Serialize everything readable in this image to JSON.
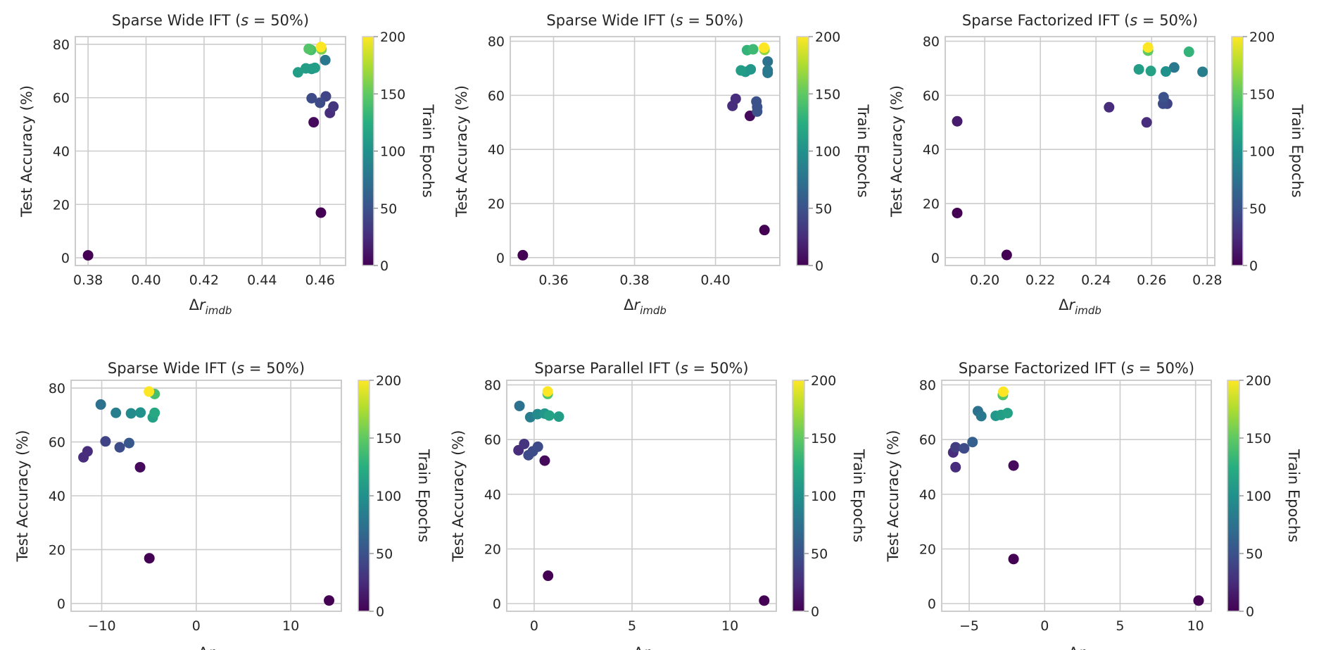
{
  "colormap": {
    "name": "viridis",
    "stops": [
      "#440154",
      "#472d7b",
      "#3b528b",
      "#2c728e",
      "#21918c",
      "#28ae80",
      "#5ec962",
      "#addc30",
      "#fde725"
    ]
  },
  "style": {
    "grid_color": "#cccccc",
    "frame_color": "#cccccc"
  },
  "chart_data": [
    {
      "type": "scatter",
      "title": {
        "prefix": "Sparse Wide IFT (",
        "var": "s",
        "suffix": " = 50%)"
      },
      "xlabel": {
        "main": "Δr",
        "sub": "imdb"
      },
      "ylabel": "Test Accuracy (%)",
      "xlim": [
        0.3756,
        0.4688
      ],
      "ylim": [
        -2.9,
        82.9
      ],
      "xticks": [
        0.38,
        0.4,
        0.42,
        0.44,
        0.46
      ],
      "xtick_labels": [
        "0.38",
        "0.40",
        "0.42",
        "0.44",
        "0.46"
      ],
      "yticks": [
        0,
        20,
        40,
        60,
        80
      ],
      "ytick_labels": [
        "0",
        "20",
        "40",
        "60",
        "80"
      ],
      "grid": true,
      "colorbar": {
        "label": "Train Epochs",
        "range": [
          0,
          200
        ],
        "ticks": [
          0,
          50,
          100,
          150,
          200
        ],
        "tick_labels": [
          "0",
          "50",
          "100",
          "150",
          "200"
        ]
      },
      "points": [
        [
          0.38,
          0.9,
          0
        ],
        [
          0.4603,
          16.9,
          0
        ],
        [
          0.4578,
          50.8,
          5
        ],
        [
          0.4634,
          54.3,
          25
        ],
        [
          0.4646,
          56.7,
          30
        ],
        [
          0.4571,
          59.8,
          45
        ],
        [
          0.46,
          58.1,
          45
        ],
        [
          0.462,
          60.5,
          40
        ],
        [
          0.4618,
          74.1,
          80
        ],
        [
          0.4524,
          69.5,
          110
        ],
        [
          0.4551,
          71.0,
          110
        ],
        [
          0.4571,
          70.8,
          105
        ],
        [
          0.4582,
          71.2,
          110
        ],
        [
          0.4561,
          78.3,
          145
        ],
        [
          0.4569,
          77.9,
          140
        ],
        [
          0.4605,
          78.1,
          160
        ],
        [
          0.4603,
          79.0,
          200
        ]
      ]
    },
    {
      "type": "scatter",
      "title": {
        "prefix": "Sparse Wide IFT (",
        "var": "s",
        "suffix": " = 50%)"
      },
      "xlabel": {
        "main": "Δr",
        "sub": "imdb"
      },
      "ylabel": "Test Accuracy (%)",
      "xlim": [
        0.3493,
        0.4159
      ],
      "ylim": [
        -2.9,
        81.7
      ],
      "xticks": [
        0.36,
        0.38,
        0.4
      ],
      "xtick_labels": [
        "0.36",
        "0.38",
        "0.40"
      ],
      "yticks": [
        0,
        20,
        40,
        60,
        80
      ],
      "ytick_labels": [
        "0",
        "20",
        "40",
        "60",
        "80"
      ],
      "grid": true,
      "colorbar": {
        "label": "Train Epochs",
        "range": [
          0,
          200
        ],
        "ticks": [
          0,
          50,
          100,
          150,
          200
        ],
        "tick_labels": [
          "0",
          "50",
          "100",
          "150",
          "200"
        ]
      },
      "points": [
        [
          0.3524,
          0.9,
          0
        ],
        [
          0.4121,
          10.2,
          0
        ],
        [
          0.4085,
          52.4,
          5
        ],
        [
          0.4042,
          56.1,
          25
        ],
        [
          0.405,
          58.7,
          25
        ],
        [
          0.4101,
          57.7,
          50
        ],
        [
          0.4103,
          55.7,
          50
        ],
        [
          0.4103,
          54.0,
          50
        ],
        [
          0.4129,
          72.5,
          75
        ],
        [
          0.4129,
          69.2,
          80
        ],
        [
          0.4129,
          68.3,
          80
        ],
        [
          0.4063,
          69.2,
          110
        ],
        [
          0.4074,
          68.7,
          105
        ],
        [
          0.4087,
          69.6,
          105
        ],
        [
          0.4078,
          76.7,
          130
        ],
        [
          0.4093,
          77.0,
          135
        ],
        [
          0.4121,
          76.8,
          165
        ],
        [
          0.412,
          77.6,
          200
        ]
      ]
    },
    {
      "type": "scatter",
      "title": {
        "prefix": "Sparse Factorized IFT (",
        "var": "s",
        "suffix": " = 50%)"
      },
      "xlabel": {
        "main": "Δr",
        "sub": "imdb"
      },
      "ylabel": "Test Accuracy (%)",
      "xlim": [
        0.1858,
        0.2827
      ],
      "ylim": [
        -2.9,
        81.7
      ],
      "xticks": [
        0.2,
        0.22,
        0.24,
        0.26,
        0.28
      ],
      "xtick_labels": [
        "0.20",
        "0.22",
        "0.24",
        "0.26",
        "0.28"
      ],
      "yticks": [
        0,
        20,
        40,
        60,
        80
      ],
      "ytick_labels": [
        "0",
        "20",
        "40",
        "60",
        "80"
      ],
      "grid": true,
      "colorbar": {
        "label": "Train Epochs",
        "range": [
          0,
          200
        ],
        "ticks": [
          0,
          50,
          100,
          150,
          200
        ],
        "tick_labels": [
          "0",
          "50",
          "100",
          "150",
          "200"
        ]
      },
      "points": [
        [
          0.1901,
          16.5,
          0
        ],
        [
          0.2079,
          1.0,
          0
        ],
        [
          0.1901,
          50.4,
          15
        ],
        [
          0.2447,
          55.6,
          25
        ],
        [
          0.2582,
          50.0,
          25
        ],
        [
          0.2641,
          56.9,
          45
        ],
        [
          0.2643,
          59.3,
          50
        ],
        [
          0.2656,
          56.9,
          40
        ],
        [
          0.2554,
          69.6,
          110
        ],
        [
          0.2597,
          69.0,
          115
        ],
        [
          0.2651,
          68.8,
          100
        ],
        [
          0.2681,
          70.3,
          80
        ],
        [
          0.2783,
          68.7,
          85
        ],
        [
          0.2734,
          76.1,
          130
        ],
        [
          0.2587,
          76.5,
          150
        ],
        [
          0.2587,
          77.7,
          200
        ]
      ]
    },
    {
      "type": "scatter",
      "title": {
        "prefix": "Sparse Wide IFT (",
        "var": "s",
        "suffix": " = 50%)"
      },
      "xlabel": {
        "main": "Δr",
        "sub": ""
      },
      "ylabel": "Test Accuracy (%)",
      "xlim": [
        -13.24,
        15.35
      ],
      "ylim": [
        -2.9,
        82.9
      ],
      "xticks": [
        -10,
        0,
        10
      ],
      "xtick_labels": [
        "−10",
        "0",
        "10"
      ],
      "yticks": [
        0,
        20,
        40,
        60,
        80
      ],
      "ytick_labels": [
        "0",
        "20",
        "40",
        "60",
        "80"
      ],
      "grid": true,
      "colorbar": {
        "label": "Train Epochs",
        "range": [
          0,
          200
        ],
        "ticks": [
          0,
          50,
          100,
          150,
          200
        ],
        "tick_labels": [
          "0",
          "50",
          "100",
          "150",
          "200"
        ]
      },
      "points": [
        [
          14.05,
          1.1,
          0
        ],
        [
          -4.96,
          16.8,
          0
        ],
        [
          -5.94,
          50.6,
          5
        ],
        [
          -11.93,
          54.3,
          25
        ],
        [
          -11.5,
          56.5,
          25
        ],
        [
          -9.6,
          60.2,
          40
        ],
        [
          -8.1,
          58.0,
          45
        ],
        [
          -7.1,
          59.6,
          55
        ],
        [
          -10.1,
          73.9,
          75
        ],
        [
          -8.5,
          70.8,
          85
        ],
        [
          -6.9,
          70.6,
          95
        ],
        [
          -5.9,
          70.9,
          100
        ],
        [
          -4.6,
          69.1,
          115
        ],
        [
          -4.4,
          70.8,
          120
        ],
        [
          -4.4,
          77.8,
          140
        ],
        [
          -5.0,
          78.7,
          200
        ]
      ]
    },
    {
      "type": "scatter",
      "title": {
        "prefix": "Sparse Parallel IFT (",
        "var": "s",
        "suffix": " = 50%)"
      },
      "xlabel": {
        "main": "Δr",
        "sub": ""
      },
      "ylabel": "Test Accuracy (%)",
      "xlim": [
        -1.4,
        12.37
      ],
      "ylim": [
        -2.8,
        81.7
      ],
      "xticks": [
        0,
        5,
        10
      ],
      "xtick_labels": [
        "0",
        "5",
        "10"
      ],
      "yticks": [
        0,
        20,
        40,
        60,
        80
      ],
      "ytick_labels": [
        "0",
        "20",
        "40",
        "60",
        "80"
      ],
      "grid": true,
      "colorbar": {
        "label": "Train Epochs",
        "range": [
          0,
          200
        ],
        "ticks": [
          0,
          50,
          100,
          150,
          200
        ],
        "tick_labels": [
          "0",
          "50",
          "100",
          "150",
          "200"
        ]
      },
      "points": [
        [
          11.75,
          1.1,
          0
        ],
        [
          0.71,
          10.2,
          0
        ],
        [
          0.54,
          52.3,
          5
        ],
        [
          -0.8,
          56.1,
          25
        ],
        [
          -0.51,
          58.4,
          30
        ],
        [
          -0.29,
          54.3,
          45
        ],
        [
          -0.07,
          55.7,
          45
        ],
        [
          0.19,
          57.4,
          45
        ],
        [
          -0.75,
          72.3,
          75
        ],
        [
          -0.2,
          68.2,
          85
        ],
        [
          0.17,
          69.3,
          95
        ],
        [
          0.54,
          69.5,
          105
        ],
        [
          0.77,
          68.8,
          115
        ],
        [
          1.26,
          68.4,
          110
        ],
        [
          0.69,
          76.7,
          145
        ],
        [
          0.69,
          77.6,
          200
        ]
      ]
    },
    {
      "type": "scatter",
      "title": {
        "prefix": "Sparse Factorized IFT (",
        "var": "s",
        "suffix": " = 50%)"
      },
      "xlabel": {
        "main": "Δr",
        "sub": ""
      },
      "ylabel": "Test Accuracy (%)",
      "xlim": [
        -6.82,
        11.04
      ],
      "ylim": [
        -2.8,
        81.7
      ],
      "xticks": [
        -5,
        0,
        5,
        10
      ],
      "xtick_labels": [
        "−5",
        "0",
        "5",
        "10"
      ],
      "yticks": [
        0,
        20,
        40,
        60,
        80
      ],
      "ytick_labels": [
        "0",
        "20",
        "40",
        "60",
        "80"
      ],
      "grid": true,
      "colorbar": {
        "label": "Train Epochs",
        "range": [
          0,
          200
        ],
        "ticks": [
          0,
          50,
          100,
          150,
          200
        ],
        "tick_labels": [
          "0",
          "50",
          "100",
          "150",
          "200"
        ]
      },
      "points": [
        [
          10.2,
          1.1,
          0
        ],
        [
          -2.06,
          16.3,
          0
        ],
        [
          -2.06,
          50.5,
          5
        ],
        [
          -5.9,
          49.9,
          25
        ],
        [
          -6.06,
          55.3,
          25
        ],
        [
          -5.9,
          57.2,
          35
        ],
        [
          -5.34,
          56.8,
          45
        ],
        [
          -4.78,
          59.1,
          60
        ],
        [
          -4.42,
          70.4,
          75
        ],
        [
          -4.2,
          68.6,
          80
        ],
        [
          -3.24,
          68.7,
          105
        ],
        [
          -2.89,
          69.0,
          110
        ],
        [
          -2.46,
          69.7,
          115
        ],
        [
          -2.77,
          76.3,
          145
        ],
        [
          -2.74,
          77.5,
          200
        ]
      ]
    }
  ]
}
